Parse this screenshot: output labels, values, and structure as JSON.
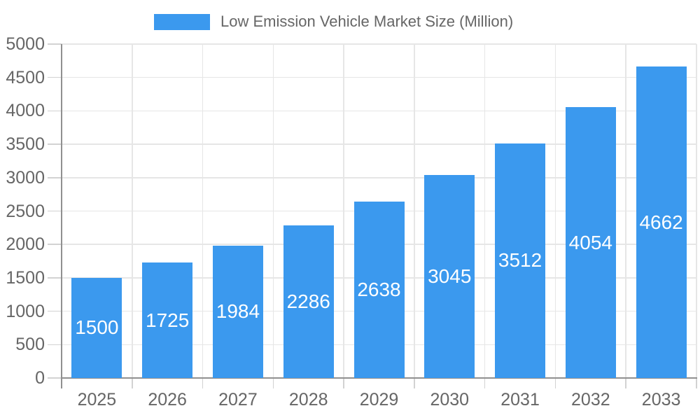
{
  "page": {
    "background": "#ffffff"
  },
  "legend": {
    "label": "Low Emission Vehicle Market Size (Million)",
    "swatch_color": "#3b99ee",
    "position": "top-center"
  },
  "chart_data": {
    "type": "bar",
    "title": "Low Emission Vehicle Market Size (Million)",
    "categories": [
      "2025",
      "2026",
      "2027",
      "2028",
      "2029",
      "2030",
      "2031",
      "2032",
      "2033"
    ],
    "series": [
      {
        "name": "Low Emission Vehicle Market Size (Million)",
        "values": [
          1500,
          1725,
          1984,
          2286,
          2638,
          3045,
          3512,
          4054,
          4662
        ]
      }
    ],
    "value_labels": [
      "1500",
      "1725",
      "1984",
      "2286",
      "2638",
      "3045",
      "3512",
      "4054",
      "4662"
    ],
    "value_label_position": "inside-center",
    "xlabel": "",
    "ylabel": "",
    "ylim": [
      0,
      5000
    ],
    "ytick_step": 500,
    "ytick_labels": [
      "0",
      "500",
      "1000",
      "1500",
      "2000",
      "2500",
      "3000",
      "3500",
      "4000",
      "4500",
      "5000"
    ],
    "grid": true,
    "legend_position": "top",
    "colors": {
      "bar": "#3b99ee",
      "value_label_text": "#ffffff",
      "axis_text": "#666666",
      "gridline": "#e6e6e6",
      "tick": "#d2d2d2",
      "axis_line": "#909090"
    }
  }
}
